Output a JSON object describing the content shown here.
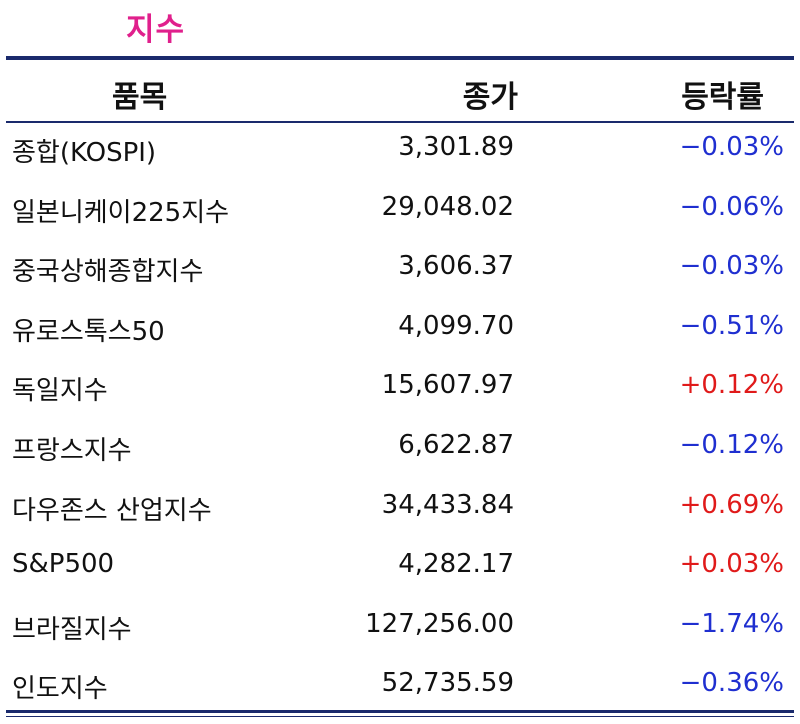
{
  "title": "지수",
  "table": {
    "headers": {
      "name": "품목",
      "close": "종가",
      "change": "등락률"
    },
    "rows": [
      {
        "name": "종합(KOSPI)",
        "close": "3,301.89",
        "change": "−0.03%",
        "direction": "down"
      },
      {
        "name": "일본니케이225지수",
        "close": "29,048.02",
        "change": "−0.06%",
        "direction": "down"
      },
      {
        "name": "중국상해종합지수",
        "close": "3,606.37",
        "change": "−0.03%",
        "direction": "down"
      },
      {
        "name": "유로스톡스50",
        "close": "4,099.70",
        "change": "−0.51%",
        "direction": "down"
      },
      {
        "name": "독일지수",
        "close": "15,607.97",
        "change": "+0.12%",
        "direction": "up"
      },
      {
        "name": "프랑스지수",
        "close": "6,622.87",
        "change": "−0.12%",
        "direction": "down"
      },
      {
        "name": "다우존스 산업지수",
        "close": "34,433.84",
        "change": "+0.69%",
        "direction": "up"
      },
      {
        "name": "S&P500",
        "close": "4,282.17",
        "change": "+0.03%",
        "direction": "up"
      },
      {
        "name": "브라질지수",
        "close": "127,256.00",
        "change": "−1.74%",
        "direction": "down"
      },
      {
        "name": "인도지수",
        "close": "52,735.59",
        "change": "−0.36%",
        "direction": "down"
      }
    ]
  },
  "colors": {
    "title": "#e0208c",
    "rule": "#1a2a6c",
    "down": "#1f2fd0",
    "up": "#e01a1a"
  }
}
